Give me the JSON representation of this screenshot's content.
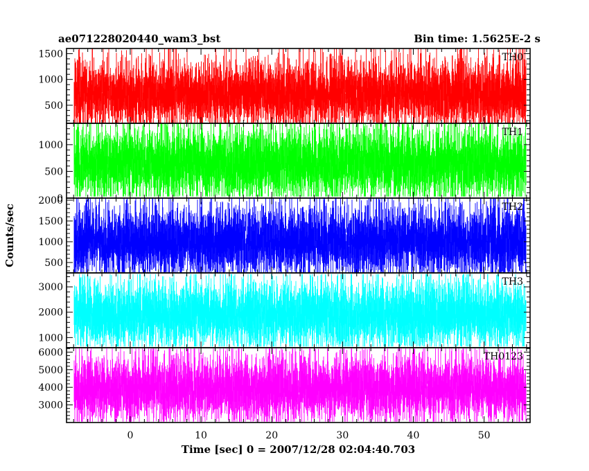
{
  "header": {
    "left": "ae071228020440_wam3_bst",
    "right": "Bin time: 1.5625E-2 s"
  },
  "axes": {
    "xlabel": "Time [sec] 0 = 2007/12/28 02:04:40.703",
    "ylabel": "Counts/sec"
  },
  "chart_data": {
    "type": "line",
    "title": "ae071228020440_wam3_bst",
    "subtitle": "Bin time: 1.5625E-2 s",
    "xlabel": "Time [sec] 0 = 2007/12/28 02:04:40.703",
    "ylabel": "Counts/sec",
    "xlim": [
      -9,
      56.5
    ],
    "x_range": [
      -7.9,
      55.9
    ],
    "x_ticks": [
      0,
      10,
      20,
      30,
      40,
      50
    ],
    "x_tick_labels": [
      "0",
      "10",
      "20",
      "30",
      "40",
      "50"
    ],
    "panels": [
      {
        "name": "TH0",
        "color": "#ff0000",
        "ylim": [
          150,
          1600
        ],
        "y_ticks": [
          500,
          1000,
          1500
        ],
        "y_tick_labels": [
          "500",
          "1000",
          "1500"
        ],
        "mean": 720,
        "typical_low": 300,
        "typical_high": 1250,
        "min": 150,
        "max": 1600
      },
      {
        "name": "TH1",
        "color": "#00ff00",
        "ylim": [
          0,
          1400
        ],
        "y_ticks": [
          0,
          500,
          1000
        ],
        "y_tick_labels": [
          "0",
          "500",
          "1000"
        ],
        "mean": 640,
        "typical_low": 180,
        "typical_high": 1150,
        "min": 30,
        "max": 1400
      },
      {
        "name": "TH2",
        "color": "#0000ff",
        "ylim": [
          250,
          2050
        ],
        "y_ticks": [
          500,
          1000,
          1500,
          2000
        ],
        "y_tick_labels": [
          "500",
          "1000",
          "1500",
          "2000"
        ],
        "mean": 1000,
        "typical_low": 420,
        "typical_high": 1650,
        "min": 250,
        "max": 2050
      },
      {
        "name": "TH3",
        "color": "#00ffff",
        "ylim": [
          600,
          3550
        ],
        "y_ticks": [
          1000,
          2000,
          3000
        ],
        "y_tick_labels": [
          "1000",
          "2000",
          "3000"
        ],
        "mean": 1900,
        "typical_low": 900,
        "typical_high": 2850,
        "min": 650,
        "max": 3500
      },
      {
        "name": "TH0123",
        "color": "#ff00ff",
        "ylim": [
          2000,
          6250
        ],
        "y_ticks": [
          3000,
          4000,
          5000,
          6000
        ],
        "y_tick_labels": [
          "3000",
          "4000",
          "5000",
          "6000"
        ],
        "mean": 3900,
        "typical_low": 2700,
        "typical_high": 5400,
        "min": 2050,
        "max": 6200
      }
    ]
  }
}
